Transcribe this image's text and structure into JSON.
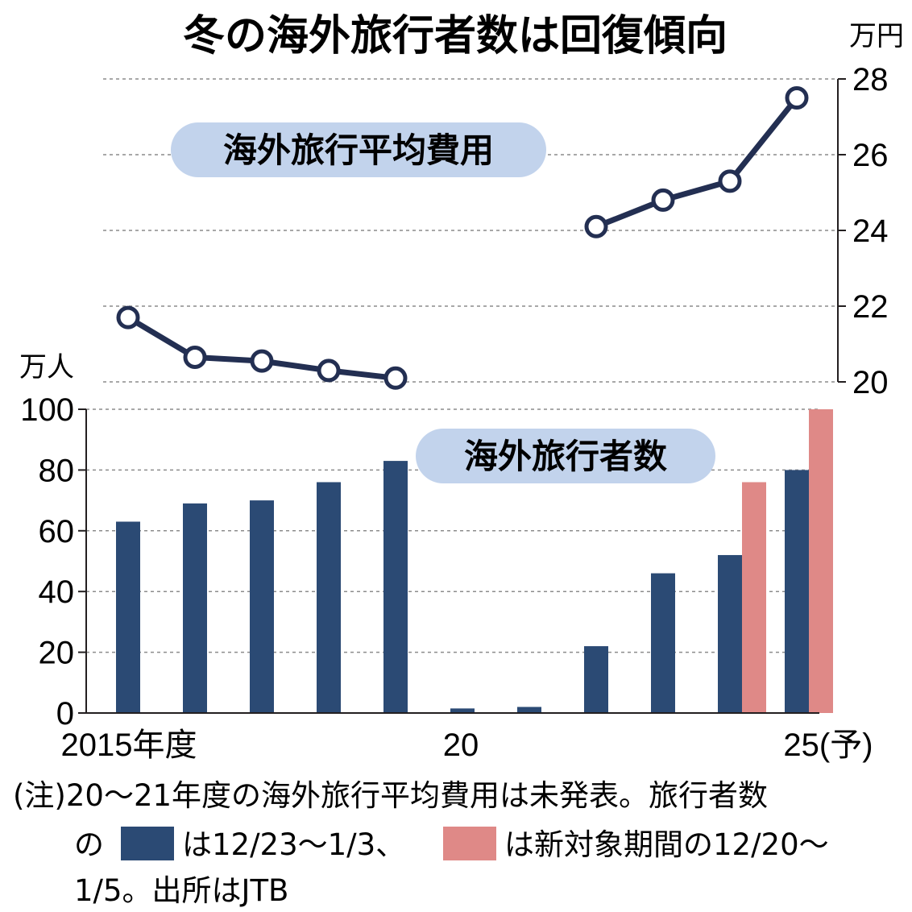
{
  "title": "冬の海外旅行者数は回復傾向",
  "colors": {
    "bar_primary": "#2b4a74",
    "bar_secondary": "#df8987",
    "line": "#232f52",
    "pill": "#c2d3ec",
    "grid": "#8c8c8c",
    "axis": "#231f20"
  },
  "chart_data": [
    {
      "type": "line",
      "title": "海外旅行平均費用",
      "unit": "万円",
      "ylim": [
        20,
        28
      ],
      "yticks": [
        20,
        22,
        24,
        26,
        28
      ],
      "x": [
        2015,
        2016,
        2017,
        2018,
        2019,
        2020,
        2021,
        2022,
        2023,
        2024,
        2025
      ],
      "series": [
        {
          "values": [
            21.7,
            20.65,
            20.55,
            20.3,
            20.1,
            null,
            null,
            24.1,
            24.8,
            25.3,
            27.5
          ]
        }
      ],
      "grid": true
    },
    {
      "type": "bar",
      "title": "海外旅行者数",
      "unit": "万人",
      "ylim": [
        0,
        100
      ],
      "yticks": [
        0,
        20,
        40,
        60,
        80,
        100
      ],
      "x": [
        2015,
        2016,
        2017,
        2018,
        2019,
        2020,
        2021,
        2022,
        2023,
        2024,
        2025
      ],
      "x_tick_labels": [
        {
          "index": 0,
          "label": "2015年度"
        },
        {
          "index": 5,
          "label": "20"
        },
        {
          "index": 10,
          "label": "25(予)"
        }
      ],
      "series": [
        {
          "values": [
            63,
            69,
            70,
            76,
            83,
            1.5,
            2,
            22,
            46,
            52,
            80
          ]
        },
        {
          "values": [
            null,
            null,
            null,
            null,
            null,
            null,
            null,
            null,
            null,
            76,
            100
          ]
        }
      ],
      "grid": true
    }
  ],
  "note": {
    "line1": "(注)20〜21年度の海外旅行平均費用は未発表。旅行者数",
    "line2_prefix": "の",
    "line2_mid": "は12/23〜1/3、",
    "line2_suffix": "は新対象期間の12/20〜",
    "line3": "1/5。出所はJTB"
  }
}
